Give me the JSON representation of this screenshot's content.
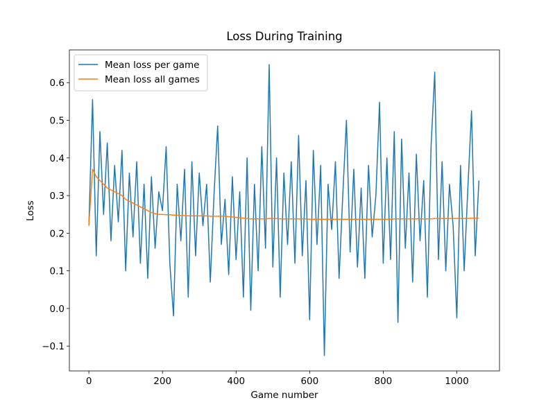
{
  "chart_data": {
    "type": "line",
    "title": "Loss During Training",
    "x_label": "Game number",
    "y_label": "Loss",
    "x": [
      0,
      10,
      20,
      30,
      40,
      50,
      60,
      70,
      80,
      90,
      100,
      110,
      120,
      130,
      140,
      150,
      160,
      170,
      180,
      190,
      200,
      210,
      220,
      230,
      240,
      250,
      260,
      270,
      280,
      290,
      300,
      310,
      320,
      330,
      340,
      350,
      360,
      370,
      380,
      390,
      400,
      410,
      420,
      430,
      440,
      450,
      460,
      470,
      480,
      490,
      500,
      510,
      520,
      530,
      540,
      550,
      560,
      570,
      580,
      590,
      600,
      610,
      620,
      630,
      640,
      650,
      660,
      670,
      680,
      690,
      700,
      710,
      720,
      730,
      740,
      750,
      760,
      770,
      780,
      790,
      800,
      810,
      820,
      830,
      840,
      850,
      860,
      870,
      880,
      890,
      900,
      910,
      920,
      930,
      940,
      950,
      960,
      970,
      980,
      990,
      1000,
      1010,
      1020,
      1030,
      1040,
      1050,
      1060
    ],
    "series": [
      {
        "name": "Mean loss per game",
        "color": "#1f77b4",
        "values": [
          0.22,
          0.555,
          0.14,
          0.47,
          0.25,
          0.44,
          0.18,
          0.38,
          0.23,
          0.42,
          0.1,
          0.36,
          0.19,
          0.39,
          0.12,
          0.33,
          0.08,
          0.35,
          0.16,
          0.31,
          0.26,
          0.43,
          0.12,
          -0.02,
          0.33,
          0.18,
          0.37,
          0.03,
          0.39,
          0.14,
          0.36,
          0.22,
          0.33,
          0.07,
          0.3,
          0.485,
          0.17,
          0.29,
          0.09,
          0.35,
          0.13,
          0.31,
          0.03,
          0.4,
          -0.005,
          0.33,
          0.1,
          0.43,
          0.16,
          0.648,
          0.11,
          0.4,
          0.03,
          0.36,
          0.17,
          0.39,
          0.12,
          0.46,
          0.14,
          0.34,
          -0.03,
          0.42,
          0.17,
          0.38,
          -0.125,
          0.33,
          0.21,
          0.39,
          0.08,
          0.3,
          0.5,
          0.15,
          0.37,
          0.11,
          0.32,
          0.08,
          0.38,
          0.19,
          0.3,
          0.548,
          0.12,
          0.4,
          0.13,
          0.47,
          -0.037,
          0.45,
          0.16,
          0.36,
          0.07,
          0.41,
          0.18,
          0.34,
          0.03,
          0.43,
          0.628,
          0.13,
          0.39,
          0.1,
          0.33,
          0.22,
          -0.025,
          0.38,
          0.1,
          0.32,
          0.525,
          0.14,
          0.34
        ]
      },
      {
        "name": "Mean loss all games",
        "color": "#ff7f0e",
        "values": [
          0.22,
          0.37,
          0.35,
          0.34,
          0.33,
          0.32,
          0.315,
          0.31,
          0.305,
          0.3,
          0.29,
          0.285,
          0.28,
          0.275,
          0.27,
          0.265,
          0.26,
          0.255,
          0.252,
          0.25,
          0.25,
          0.249,
          0.249,
          0.248,
          0.248,
          0.247,
          0.247,
          0.246,
          0.246,
          0.246,
          0.246,
          0.246,
          0.246,
          0.245,
          0.245,
          0.245,
          0.245,
          0.245,
          0.244,
          0.243,
          0.242,
          0.241,
          0.24,
          0.239,
          0.238,
          0.238,
          0.238,
          0.238,
          0.238,
          0.239,
          0.239,
          0.239,
          0.238,
          0.238,
          0.238,
          0.238,
          0.238,
          0.238,
          0.238,
          0.238,
          0.237,
          0.237,
          0.237,
          0.237,
          0.237,
          0.237,
          0.237,
          0.237,
          0.237,
          0.237,
          0.237,
          0.237,
          0.237,
          0.237,
          0.237,
          0.237,
          0.237,
          0.237,
          0.237,
          0.237,
          0.237,
          0.237,
          0.237,
          0.238,
          0.238,
          0.238,
          0.238,
          0.238,
          0.238,
          0.238,
          0.238,
          0.238,
          0.238,
          0.238,
          0.239,
          0.239,
          0.239,
          0.239,
          0.239,
          0.239,
          0.239,
          0.239,
          0.239,
          0.239,
          0.24,
          0.24,
          0.24
        ]
      }
    ],
    "xlim": [
      -53,
      1116
    ],
    "ylim": [
      -0.166,
      0.687
    ],
    "xticks": [
      0,
      200,
      400,
      600,
      800,
      1000
    ],
    "yticks": [
      {
        "value": -0.1,
        "label": "−0.1"
      },
      {
        "value": 0,
        "label": "0.0"
      },
      0.1,
      0.2,
      0.3,
      0.4,
      0.5,
      0.6
    ],
    "legend": "upper left",
    "grid": false
  }
}
